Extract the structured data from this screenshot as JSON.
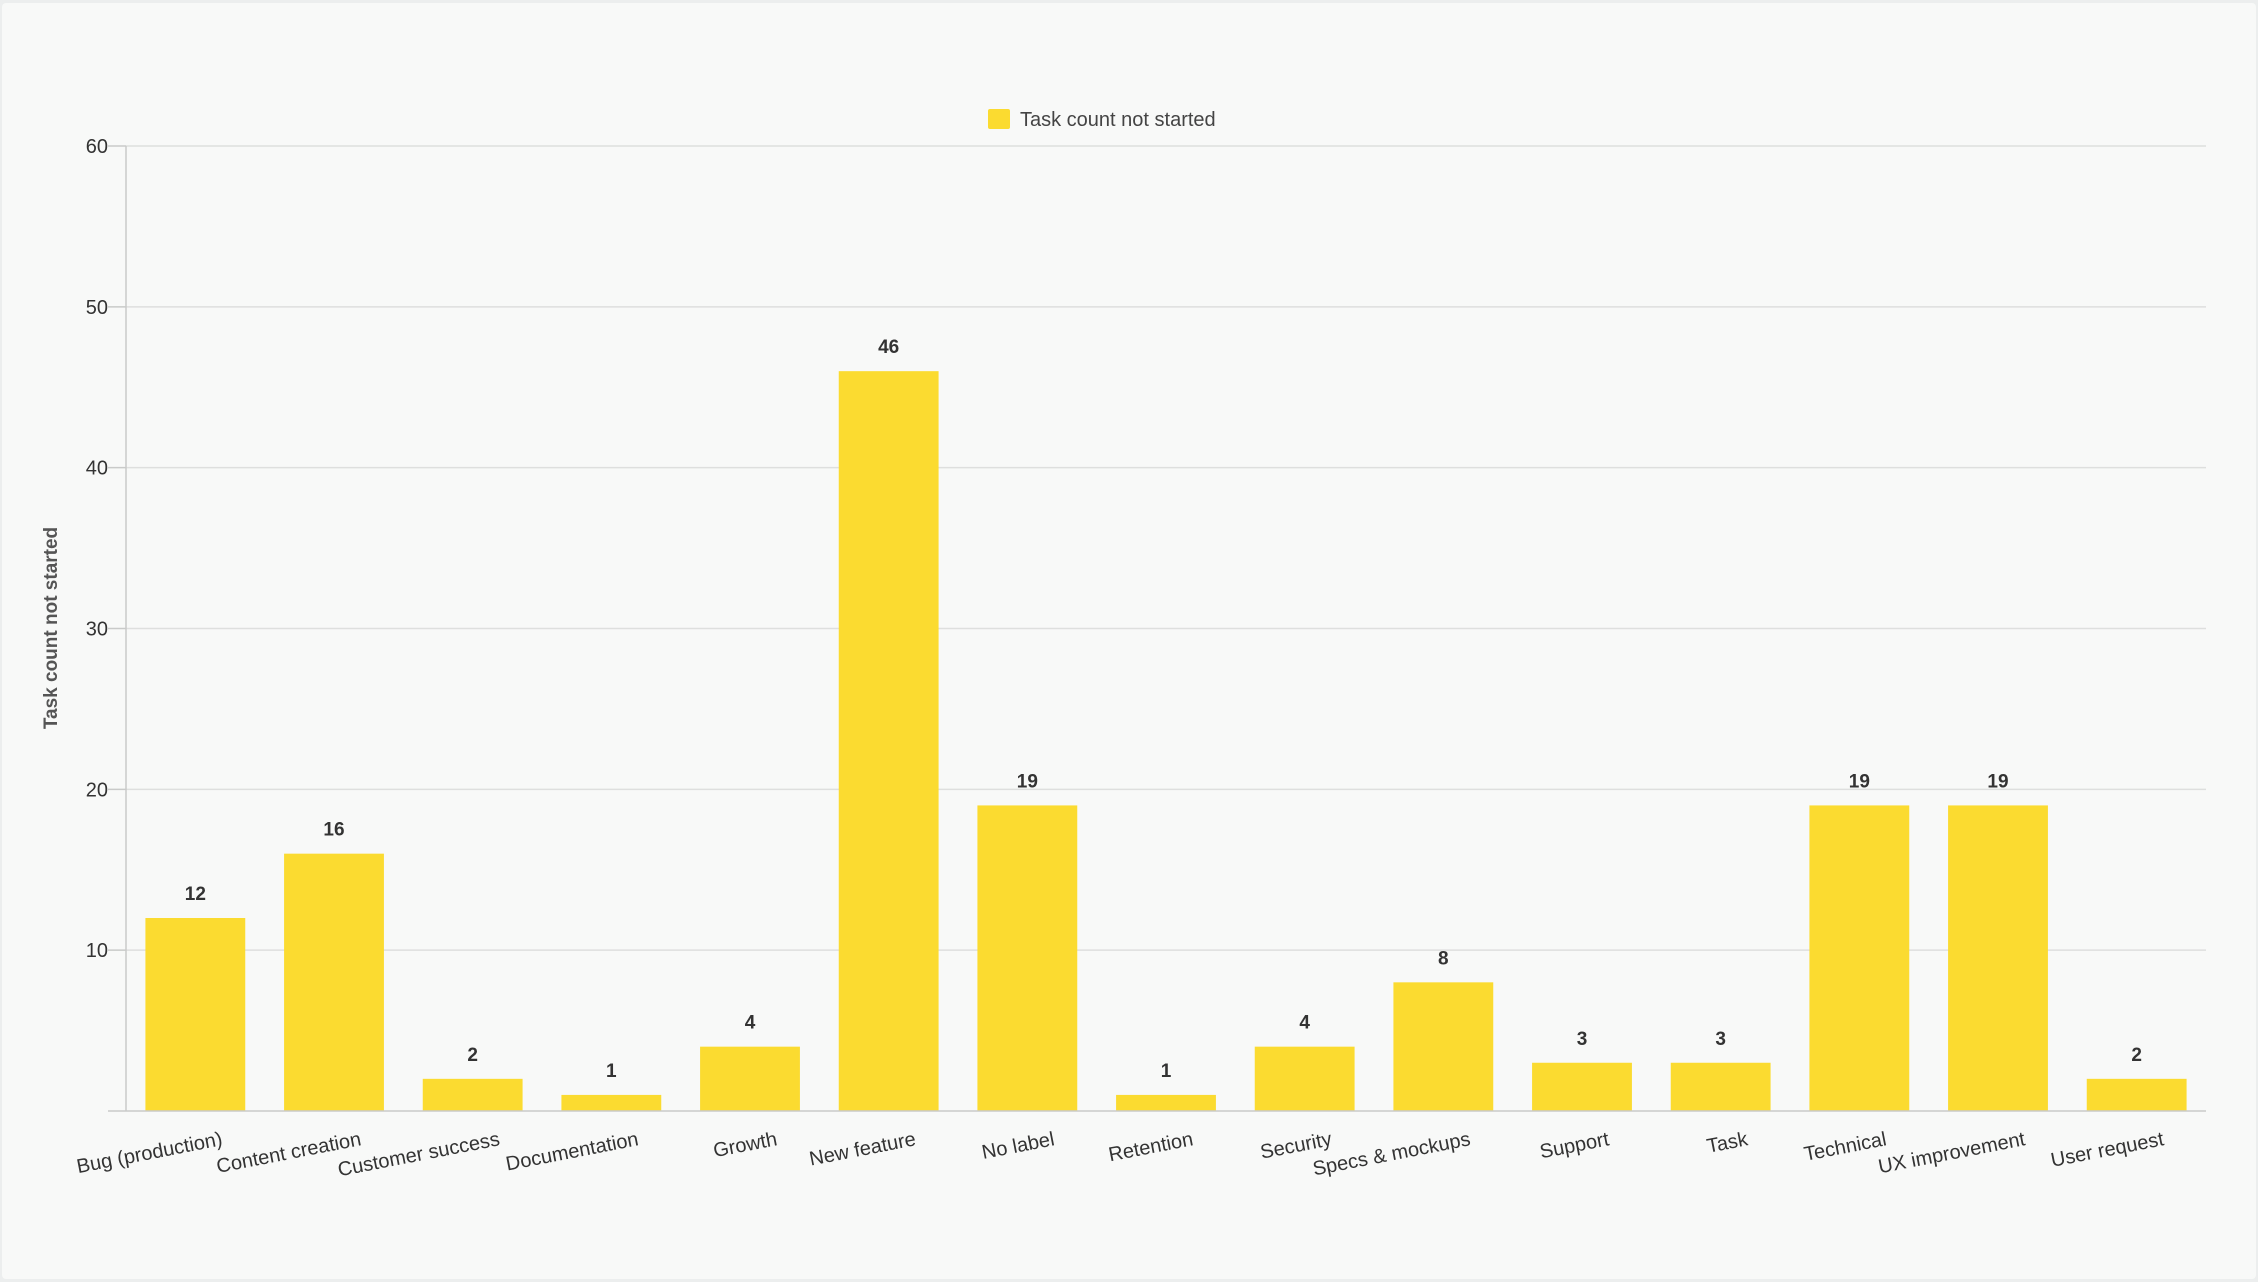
{
  "chart_data": {
    "type": "bar",
    "categories": [
      "Bug (production)",
      "Content creation",
      "Customer success",
      "Documentation",
      "Growth",
      "New feature",
      "No label",
      "Retention",
      "Security",
      "Specs & mockups",
      "Support",
      "Task",
      "Technical",
      "UX improvement",
      "User request"
    ],
    "series": [
      {
        "name": "Task count not started",
        "values": [
          12,
          16,
          2,
          1,
          4,
          46,
          19,
          1,
          4,
          8,
          3,
          3,
          19,
          19,
          2
        ],
        "color": "#fbdb30"
      }
    ],
    "title": "",
    "xlabel": "",
    "ylabel": "Task count not started",
    "ylim": [
      0,
      60
    ],
    "yticks": [
      10,
      20,
      30,
      40,
      50,
      60
    ],
    "grid": true,
    "legend_position": "top-center",
    "data_labels": true
  }
}
